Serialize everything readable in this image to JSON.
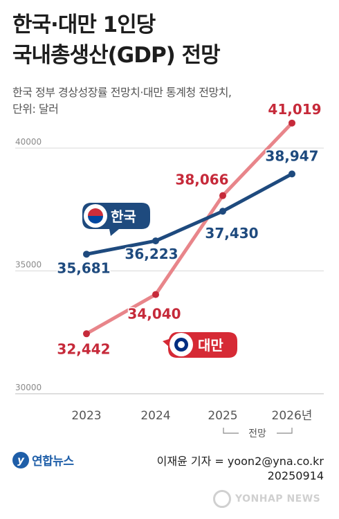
{
  "title_line1": "한국·대만 1인당",
  "title_line2": "국내총생산(GDP) 전망",
  "subtitle_line1": "한국 정부 경상성장률 전망치·대만 통계청 전망치,",
  "subtitle_line2": "단위: 달러",
  "chart_data": {
    "type": "line",
    "title": "한국·대만 1인당 국내총생산(GDP) 전망",
    "categories": [
      "2023",
      "2024",
      "2025",
      "2026년"
    ],
    "projection_label": "전망",
    "ylim": [
      30000,
      41000
    ],
    "yticks": [
      "40000",
      "35000",
      "30000"
    ],
    "ytick_values": [
      40000,
      35000,
      30000
    ],
    "series": [
      {
        "name": "한국",
        "values": [
          35681,
          36223,
          37430,
          38947
        ],
        "labels": [
          "35,681",
          "36,223",
          "37,430",
          "38,947"
        ],
        "color": "#1e4a7e"
      },
      {
        "name": "대만",
        "values": [
          32442,
          34040,
          38066,
          41019
        ],
        "labels": [
          "32,442",
          "34,040",
          "38,066",
          "41,019"
        ],
        "color": "#e8858a",
        "label_color": "#c62a3a"
      }
    ]
  },
  "footer": {
    "logo_text": "연합뉴스",
    "credit_line1": "이재윤 기자 = yoon2@yna.co.kr",
    "credit_line2": "20250914",
    "watermark": "YONHAP NEWS"
  },
  "colors": {
    "korea": "#1e4a7e",
    "taiwan_line": "#e8858a",
    "taiwan_label": "#c62a3a",
    "grid": "#d9d9d9"
  }
}
